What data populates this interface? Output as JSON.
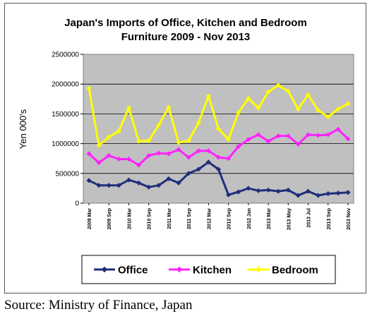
{
  "chart_data": {
    "type": "line",
    "title_lines": [
      "Japan's Imports of Office, Kitchen and Bedroom",
      "Furniture 2009 - Nov 2013"
    ],
    "ylabel": "Yen 000's",
    "ylim": [
      0,
      2500000
    ],
    "yticks": [
      "0",
      "500000",
      "1000000",
      "1500000",
      "2000000",
      "2500000"
    ],
    "x_tick_labels": [
      "2009 Mar",
      "2009 Sep",
      "2010 Mar",
      "2010 Sep",
      "2011 Mar",
      "2011 Sep",
      "2012 Mar",
      "2012 Sep",
      "2012 Jan",
      "2013 Mar",
      "2013 May",
      "2013 Jul",
      "2013 Sep",
      "2013 Nov"
    ],
    "grid": "horizontal",
    "legend": "bottom",
    "series": [
      {
        "name": "Office",
        "color": "#1f2d7a",
        "values": [
          380000,
          300000,
          300000,
          300000,
          390000,
          340000,
          270000,
          300000,
          410000,
          340000,
          500000,
          570000,
          690000,
          570000,
          140000,
          190000,
          250000,
          210000,
          220000,
          200000,
          220000,
          130000,
          200000,
          130000,
          160000,
          170000,
          180000
        ]
      },
      {
        "name": "Kitchen",
        "color": "#ff22ff",
        "values": [
          830000,
          680000,
          800000,
          740000,
          740000,
          640000,
          800000,
          840000,
          830000,
          900000,
          770000,
          880000,
          880000,
          770000,
          750000,
          950000,
          1070000,
          1150000,
          1040000,
          1130000,
          1130000,
          990000,
          1150000,
          1140000,
          1150000,
          1240000,
          1080000
        ]
      },
      {
        "name": "Bedroom",
        "color": "#ffff00",
        "values": [
          1930000,
          970000,
          1110000,
          1210000,
          1600000,
          1040000,
          1050000,
          1310000,
          1610000,
          1020000,
          1050000,
          1350000,
          1800000,
          1250000,
          1070000,
          1520000,
          1760000,
          1600000,
          1870000,
          1980000,
          1880000,
          1580000,
          1820000,
          1560000,
          1450000,
          1580000,
          1670000
        ]
      }
    ]
  },
  "source": "Source: Ministry of Finance, Japan"
}
